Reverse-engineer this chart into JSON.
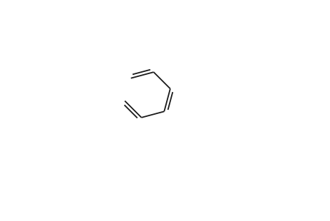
{
  "bg_color": "#ffffff",
  "bond_color": "#1a1a1a",
  "S_color": "#b87000",
  "N_color": "#1a1a1a",
  "line_width": 1.3,
  "font_size": 9,
  "figsize": [
    4.64,
    3.1
  ],
  "dpi": 100
}
